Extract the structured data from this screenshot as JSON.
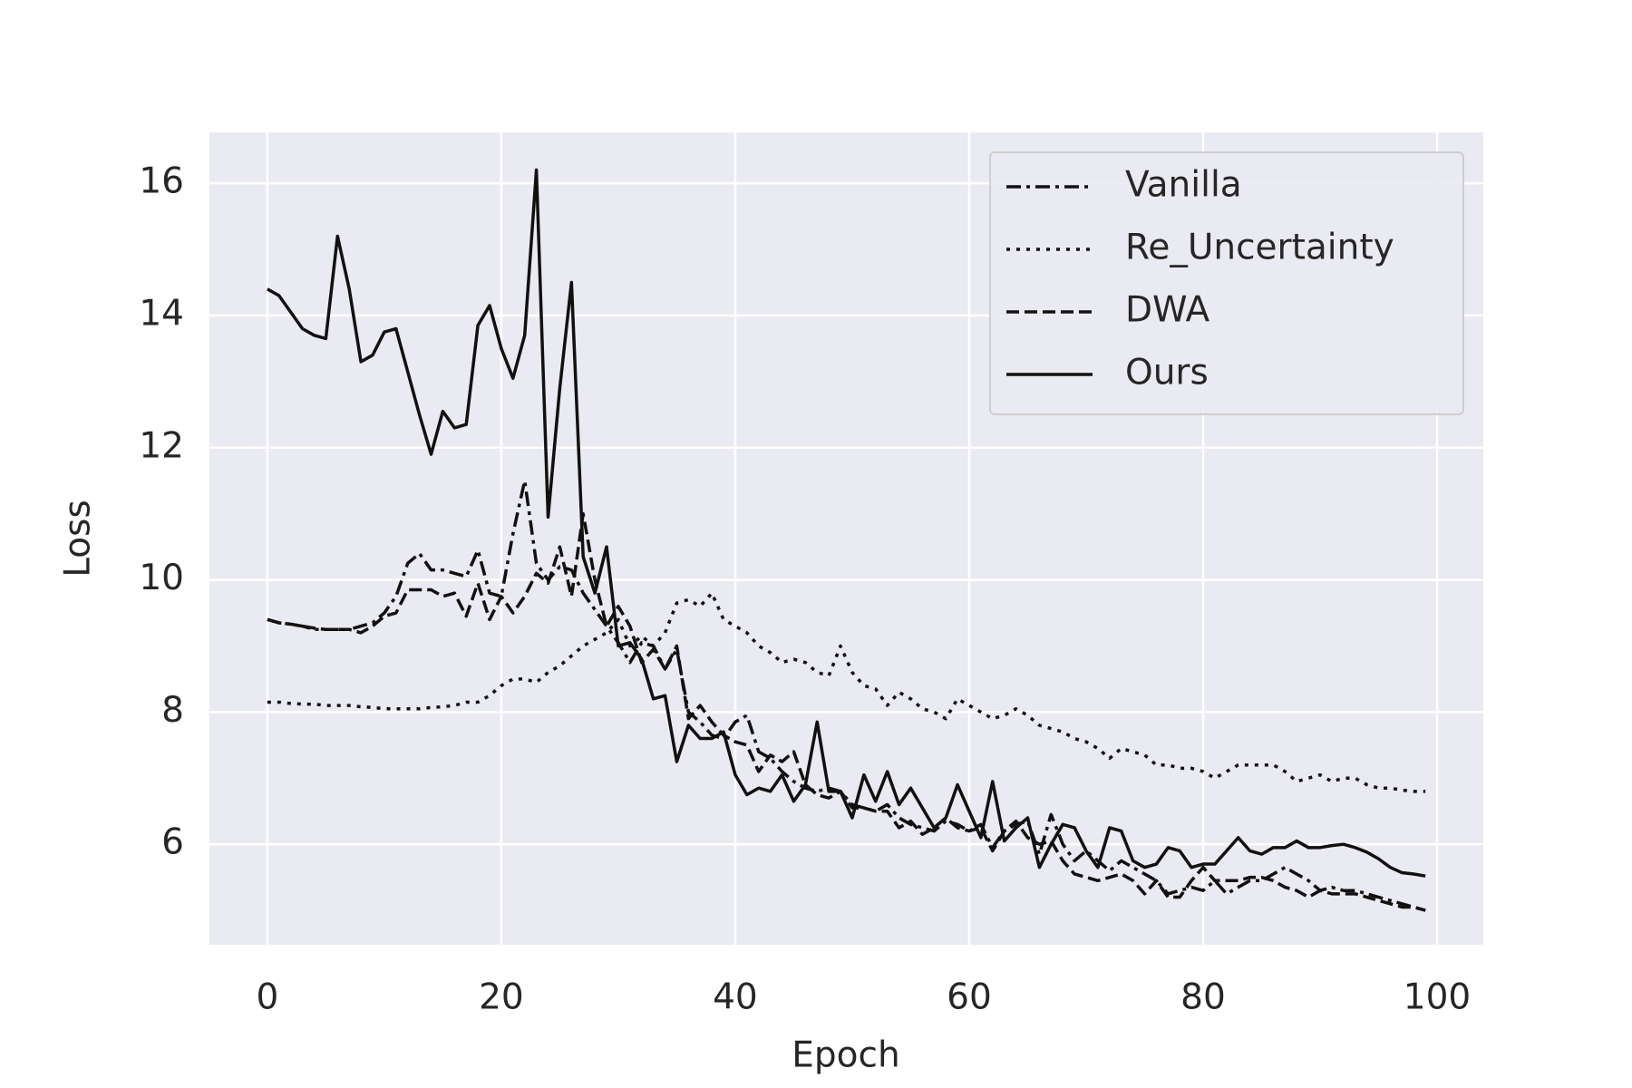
{
  "chart_data": {
    "type": "line",
    "x_label": "Epoch",
    "y_label": "Loss",
    "x": [
      0,
      1,
      2,
      3,
      4,
      5,
      6,
      7,
      8,
      9,
      10,
      11,
      12,
      13,
      14,
      15,
      16,
      17,
      18,
      19,
      20,
      21,
      22,
      23,
      24,
      25,
      26,
      27,
      28,
      29,
      30,
      31,
      32,
      33,
      34,
      35,
      36,
      37,
      38,
      39,
      40,
      41,
      42,
      43,
      44,
      45,
      46,
      47,
      48,
      49,
      50,
      51,
      52,
      53,
      54,
      55,
      56,
      57,
      58,
      59,
      60,
      61,
      62,
      63,
      64,
      65,
      66,
      67,
      68,
      69,
      70,
      71,
      72,
      73,
      74,
      75,
      76,
      77,
      78,
      79,
      80,
      81,
      82,
      83,
      84,
      85,
      86,
      87,
      88,
      89,
      90,
      91,
      92,
      93,
      94,
      95,
      96,
      97,
      98,
      99
    ],
    "xlim": [
      -4.95,
      103.95
    ],
    "xticks": [
      0,
      20,
      40,
      60,
      80,
      100
    ],
    "ylim": [
      4.48,
      16.77
    ],
    "yticks": [
      6,
      8,
      10,
      12,
      14,
      16
    ],
    "grid": true,
    "legend_loc": "upper-right",
    "series": [
      {
        "name": "Vanilla",
        "color": "#111111",
        "linestyle": "-.",
        "values": [
          9.4,
          9.35,
          9.33,
          9.3,
          9.25,
          9.25,
          9.25,
          9.25,
          9.3,
          9.35,
          9.5,
          9.75,
          10.25,
          10.4,
          10.15,
          10.15,
          10.1,
          10.05,
          10.45,
          9.8,
          9.75,
          10.7,
          11.5,
          10.25,
          10.0,
          10.2,
          10.15,
          9.8,
          9.55,
          9.3,
          9.05,
          8.75,
          9.05,
          9.0,
          8.65,
          8.95,
          8.0,
          7.85,
          7.65,
          7.6,
          7.85,
          7.95,
          7.4,
          7.3,
          7.1,
          6.95,
          6.85,
          6.8,
          6.85,
          6.8,
          6.6,
          6.55,
          6.5,
          6.6,
          6.4,
          6.3,
          6.25,
          6.2,
          6.35,
          6.3,
          6.2,
          6.3,
          5.95,
          6.2,
          6.3,
          6.35,
          5.85,
          6.45,
          6.0,
          5.75,
          5.9,
          5.75,
          5.6,
          5.75,
          5.65,
          5.55,
          5.45,
          5.25,
          5.3,
          5.35,
          5.3,
          5.45,
          5.25,
          5.35,
          5.45,
          5.45,
          5.55,
          5.65,
          5.55,
          5.45,
          5.3,
          5.35,
          5.3,
          5.3,
          5.25,
          5.2,
          5.15,
          5.1,
          5.05,
          5.0
        ]
      },
      {
        "name": "Re_Uncertainty",
        "color": "#111111",
        "linestyle": ":",
        "values": [
          8.15,
          8.15,
          8.13,
          8.12,
          8.12,
          8.1,
          8.1,
          8.1,
          8.08,
          8.07,
          8.05,
          8.05,
          8.05,
          8.05,
          8.07,
          8.08,
          8.1,
          8.15,
          8.15,
          8.25,
          8.4,
          8.5,
          8.5,
          8.45,
          8.6,
          8.7,
          8.85,
          9.0,
          9.1,
          9.2,
          9.4,
          9.0,
          9.15,
          9.0,
          9.2,
          9.65,
          9.7,
          9.6,
          9.8,
          9.4,
          9.3,
          9.2,
          9.0,
          8.9,
          8.75,
          8.8,
          8.75,
          8.6,
          8.55,
          9.0,
          8.6,
          8.4,
          8.35,
          8.1,
          8.3,
          8.2,
          8.05,
          8.0,
          7.9,
          8.2,
          8.1,
          8.0,
          7.9,
          7.95,
          8.05,
          7.95,
          7.8,
          7.75,
          7.7,
          7.6,
          7.55,
          7.45,
          7.3,
          7.45,
          7.4,
          7.35,
          7.2,
          7.2,
          7.15,
          7.15,
          7.1,
          7.0,
          7.1,
          7.2,
          7.2,
          7.2,
          7.2,
          7.1,
          6.95,
          7.0,
          7.05,
          6.95,
          7.0,
          7.0,
          6.9,
          6.85,
          6.85,
          6.82,
          6.8,
          6.8
        ]
      },
      {
        "name": "DWA",
        "color": "#111111",
        "linestyle": "--",
        "values": [
          9.4,
          9.35,
          9.33,
          9.3,
          9.27,
          9.25,
          9.25,
          9.25,
          9.2,
          9.3,
          9.45,
          9.5,
          9.85,
          9.85,
          9.85,
          9.75,
          9.8,
          9.45,
          9.95,
          9.4,
          9.75,
          9.5,
          9.75,
          10.1,
          9.95,
          10.5,
          9.75,
          11.0,
          10.0,
          9.3,
          9.6,
          9.3,
          8.75,
          8.95,
          8.65,
          9.0,
          7.9,
          8.1,
          7.85,
          7.65,
          7.55,
          7.5,
          7.1,
          7.35,
          7.25,
          7.4,
          6.9,
          6.75,
          6.7,
          6.8,
          6.55,
          6.55,
          6.5,
          6.5,
          6.25,
          6.35,
          6.15,
          6.25,
          6.4,
          6.25,
          6.2,
          6.25,
          5.9,
          6.2,
          6.35,
          6.1,
          6.0,
          6.05,
          5.75,
          5.55,
          5.5,
          5.45,
          5.5,
          5.55,
          5.45,
          5.25,
          5.45,
          5.2,
          5.2,
          5.45,
          5.65,
          5.45,
          5.45,
          5.45,
          5.5,
          5.5,
          5.45,
          5.35,
          5.3,
          5.2,
          5.3,
          5.25,
          5.25,
          5.25,
          5.2,
          5.15,
          5.1,
          5.05,
          5.05,
          5.0
        ]
      },
      {
        "name": "Ours",
        "color": "#111111",
        "linestyle": "-",
        "values": [
          14.4,
          14.3,
          14.05,
          13.8,
          13.7,
          13.65,
          15.2,
          14.4,
          13.3,
          13.4,
          13.75,
          13.8,
          13.15,
          12.5,
          11.9,
          12.55,
          12.3,
          12.35,
          13.85,
          14.15,
          13.5,
          13.05,
          13.7,
          16.2,
          10.95,
          12.9,
          14.5,
          10.35,
          9.8,
          10.5,
          9.0,
          9.05,
          8.8,
          8.2,
          8.25,
          7.25,
          7.8,
          7.6,
          7.6,
          7.7,
          7.05,
          6.75,
          6.85,
          6.8,
          7.05,
          6.65,
          6.9,
          7.85,
          6.8,
          6.8,
          6.4,
          7.05,
          6.65,
          7.1,
          6.6,
          6.85,
          6.55,
          6.25,
          6.4,
          6.9,
          6.5,
          6.1,
          6.95,
          6.05,
          6.25,
          6.4,
          5.65,
          6.0,
          6.3,
          6.25,
          5.9,
          5.65,
          6.25,
          6.2,
          5.75,
          5.65,
          5.7,
          5.95,
          5.9,
          5.65,
          5.7,
          5.7,
          5.9,
          6.1,
          5.9,
          5.85,
          5.95,
          5.95,
          6.05,
          5.95,
          5.95,
          5.98,
          6.0,
          5.95,
          5.88,
          5.78,
          5.65,
          5.57,
          5.55,
          5.52
        ]
      }
    ]
  }
}
